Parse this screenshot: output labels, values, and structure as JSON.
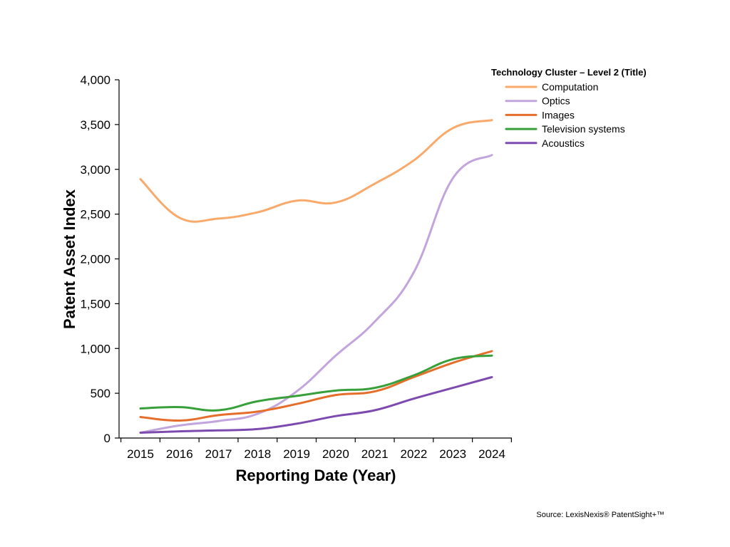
{
  "chart_data": {
    "type": "line",
    "title": "",
    "xlabel": "Reporting Date (Year)",
    "ylabel": "Patent Asset Index",
    "x": [
      2015,
      2016,
      2017,
      2018,
      2019,
      2020,
      2021,
      2022,
      2023,
      2024
    ],
    "x_tick_labels": [
      "2015",
      "2016",
      "2017",
      "2018",
      "2019",
      "2020",
      "2021",
      "2022",
      "2023",
      "2024"
    ],
    "ylim": [
      0,
      4000
    ],
    "y_ticks": [
      0,
      500,
      1000,
      1500,
      2000,
      2500,
      3000,
      3500,
      4000
    ],
    "y_tick_labels": [
      "0",
      "500",
      "1,000",
      "1,500",
      "2,000",
      "2,500",
      "3,000",
      "3,500",
      "4,000"
    ],
    "grid": false,
    "legend": {
      "title": "Technology Cluster – Level 2 (Title)",
      "placement": "top-right"
    },
    "series": [
      {
        "name": "Computation",
        "color": "#F9A96A",
        "values": [
          2890,
          2460,
          2450,
          2520,
          2650,
          2630,
          2840,
          3100,
          3460,
          3550
        ]
      },
      {
        "name": "Optics",
        "color": "#C2A5DC",
        "values": [
          60,
          140,
          190,
          270,
          520,
          920,
          1300,
          1850,
          2900,
          3160
        ]
      },
      {
        "name": "Images",
        "color": "#E46E2A",
        "values": [
          235,
          195,
          255,
          295,
          380,
          480,
          520,
          680,
          840,
          970
        ]
      },
      {
        "name": "Television systems",
        "color": "#38A03A",
        "values": [
          330,
          345,
          310,
          410,
          470,
          530,
          560,
          700,
          880,
          920
        ]
      },
      {
        "name": "Acoustics",
        "color": "#7D4BB0",
        "values": [
          60,
          75,
          85,
          100,
          160,
          245,
          310,
          440,
          560,
          680
        ]
      }
    ],
    "source": "Source: LexisNexis® PatentSight+™"
  }
}
